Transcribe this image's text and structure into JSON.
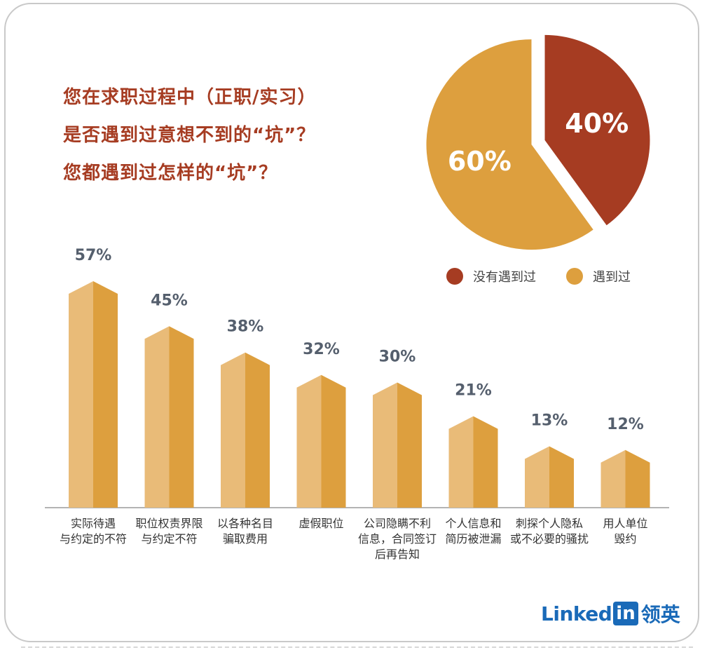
{
  "title": {
    "line1": "您在求职过程中（正职/实习）",
    "line2": "是否遇到过意想不到的“坑”？",
    "line3": "您都遇到过怎样的“坑”？"
  },
  "colors": {
    "title": "#a63c22",
    "pie_no": "#a63c22",
    "pie_yes": "#dd9f3e",
    "bar_light": "#e9bb78",
    "bar_dark": "#dd9f3e",
    "value_label": "#555f6d"
  },
  "chart_data": [
    {
      "type": "pie",
      "slices": [
        {
          "name": "没有遇到过",
          "label": "40%",
          "value": 40
        },
        {
          "name": "遇到过",
          "label": "60%",
          "value": 60
        }
      ],
      "legend": "below"
    },
    {
      "type": "bar",
      "categories": [
        [
          "实际待遇",
          "与约定的不符"
        ],
        [
          "职位权责界限",
          "与约定不符"
        ],
        [
          "以各种名目",
          "骗取费用"
        ],
        [
          "虚假职位"
        ],
        [
          "公司隐瞒不利",
          "信息，合同签订",
          "后再告知"
        ],
        [
          "个人信息和",
          "简历被泄漏"
        ],
        [
          "刺探个人隐私",
          "或不必要的骚扰"
        ],
        [
          "用人单位",
          "毁约"
        ]
      ],
      "values": [
        57,
        45,
        38,
        32,
        30,
        21,
        13,
        12
      ],
      "labels": [
        "57%",
        "45%",
        "38%",
        "32%",
        "30%",
        "21%",
        "13%",
        "12%"
      ],
      "grid": false
    }
  ],
  "logo": {
    "word": "Linked",
    "box": "in",
    "cn": "领英"
  }
}
